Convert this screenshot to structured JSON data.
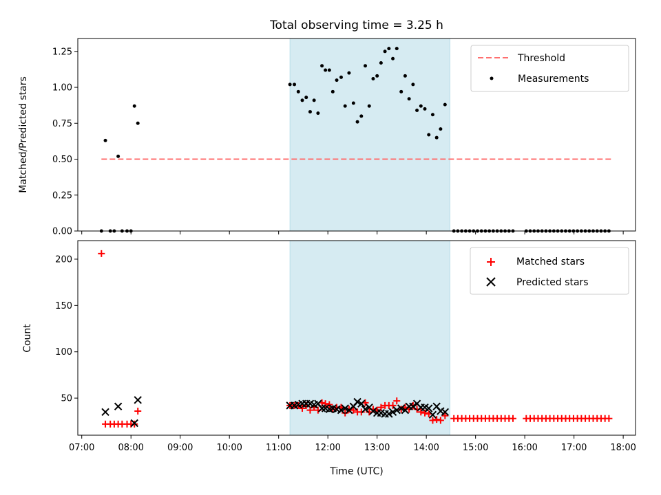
{
  "chart_data": [
    {
      "type": "scatter",
      "title": "Total observing time = 3.25 h",
      "ylabel": "Matched/Predicted stars",
      "xlabel": "",
      "xlim": [
        6.92,
        18.25
      ],
      "ylim": [
        0,
        1.34
      ],
      "yticks": [
        0,
        0.25,
        0.5,
        0.75,
        1.0,
        1.25
      ],
      "ytick_labels": [
        "0.00",
        "0.25",
        "0.50",
        "0.75",
        "1.00",
        "1.25"
      ],
      "xticks": [
        7,
        8,
        9,
        10,
        11,
        12,
        13,
        14,
        15,
        16,
        17,
        18
      ],
      "show_xtick_labels": false,
      "shaded_span": {
        "x0": 11.23,
        "x1": 14.48,
        "color": "#add8e6"
      },
      "threshold": {
        "name": "Threshold",
        "y": 0.5,
        "x0": 7.4,
        "x1": 17.75,
        "color": "#ff6f6f"
      },
      "legend": {
        "placement": "upper right",
        "entries": [
          "Threshold",
          "Measurements"
        ]
      },
      "series": [
        {
          "name": "Measurements",
          "color": "#000000",
          "marker": "dot",
          "points": [
            [
              7.4,
              0
            ],
            [
              7.48,
              0.63
            ],
            [
              7.58,
              0
            ],
            [
              7.66,
              0
            ],
            [
              7.74,
              0.52
            ],
            [
              7.82,
              0
            ],
            [
              7.92,
              0
            ],
            [
              8.0,
              0
            ],
            [
              8.07,
              0.87
            ],
            [
              8.14,
              0.75
            ],
            [
              11.23,
              1.02
            ],
            [
              11.32,
              1.02
            ],
            [
              11.4,
              0.97
            ],
            [
              11.48,
              0.91
            ],
            [
              11.56,
              0.93
            ],
            [
              11.64,
              0.83
            ],
            [
              11.72,
              0.91
            ],
            [
              11.8,
              0.82
            ],
            [
              11.88,
              1.15
            ],
            [
              11.95,
              1.12
            ],
            [
              12.03,
              1.12
            ],
            [
              12.1,
              0.97
            ],
            [
              12.18,
              1.05
            ],
            [
              12.27,
              1.07
            ],
            [
              12.35,
              0.87
            ],
            [
              12.43,
              1.1
            ],
            [
              12.52,
              0.89
            ],
            [
              12.6,
              0.76
            ],
            [
              12.68,
              0.8
            ],
            [
              12.76,
              1.15
            ],
            [
              12.84,
              0.87
            ],
            [
              12.92,
              1.06
            ],
            [
              13.0,
              1.08
            ],
            [
              13.08,
              1.17
            ],
            [
              13.16,
              1.25
            ],
            [
              13.24,
              1.27
            ],
            [
              13.32,
              1.2
            ],
            [
              13.4,
              1.27
            ],
            [
              13.49,
              0.97
            ],
            [
              13.57,
              1.08
            ],
            [
              13.65,
              0.92
            ],
            [
              13.73,
              1.02
            ],
            [
              13.81,
              0.84
            ],
            [
              13.89,
              0.87
            ],
            [
              13.97,
              0.85
            ],
            [
              14.05,
              0.67
            ],
            [
              14.13,
              0.81
            ],
            [
              14.21,
              0.65
            ],
            [
              14.29,
              0.71
            ],
            [
              14.38,
              0.88
            ],
            [
              14.56,
              0
            ],
            [
              14.64,
              0
            ],
            [
              14.72,
              0
            ],
            [
              14.8,
              0
            ],
            [
              14.88,
              0
            ],
            [
              14.96,
              0
            ],
            [
              15.04,
              0
            ],
            [
              15.12,
              0
            ],
            [
              15.2,
              0
            ],
            [
              15.28,
              0
            ],
            [
              15.36,
              0
            ],
            [
              15.44,
              0
            ],
            [
              15.52,
              0
            ],
            [
              15.6,
              0
            ],
            [
              15.68,
              0
            ],
            [
              15.76,
              0
            ],
            [
              16.03,
              0
            ],
            [
              16.11,
              0
            ],
            [
              16.19,
              0
            ],
            [
              16.27,
              0
            ],
            [
              16.35,
              0
            ],
            [
              16.43,
              0
            ],
            [
              16.51,
              0
            ],
            [
              16.59,
              0
            ],
            [
              16.67,
              0
            ],
            [
              16.75,
              0
            ],
            [
              16.83,
              0
            ],
            [
              16.91,
              0
            ],
            [
              16.99,
              0
            ],
            [
              17.07,
              0
            ],
            [
              17.15,
              0
            ],
            [
              17.23,
              0
            ],
            [
              17.31,
              0
            ],
            [
              17.39,
              0
            ],
            [
              17.47,
              0
            ],
            [
              17.55,
              0
            ],
            [
              17.63,
              0
            ],
            [
              17.71,
              0
            ]
          ]
        }
      ]
    },
    {
      "type": "scatter",
      "title": "",
      "ylabel": "Count",
      "xlabel": "Time (UTC)",
      "xlim": [
        6.92,
        18.25
      ],
      "ylim": [
        10,
        220
      ],
      "yticks": [
        50,
        100,
        150,
        200
      ],
      "ytick_labels": [
        "50",
        "100",
        "150",
        "200"
      ],
      "xticks": [
        7,
        8,
        9,
        10,
        11,
        12,
        13,
        14,
        15,
        16,
        17,
        18
      ],
      "xtick_labels": [
        "07:00",
        "08:00",
        "09:00",
        "10:00",
        "11:00",
        "12:00",
        "13:00",
        "14:00",
        "15:00",
        "16:00",
        "17:00",
        "18:00"
      ],
      "shaded_span": {
        "x0": 11.23,
        "x1": 14.48,
        "color": "#add8e6"
      },
      "legend": {
        "placement": "upper right",
        "entries": [
          "Matched stars",
          "Predicted stars"
        ]
      },
      "series": [
        {
          "name": "Matched stars",
          "color": "#ff0000",
          "marker": "plus",
          "points": [
            [
              7.4,
              206
            ],
            [
              7.48,
              22
            ],
            [
              7.58,
              22
            ],
            [
              7.66,
              22
            ],
            [
              7.74,
              22
            ],
            [
              7.82,
              22
            ],
            [
              7.92,
              22
            ],
            [
              8.0,
              22
            ],
            [
              8.07,
              22
            ],
            [
              8.14,
              36
            ],
            [
              11.23,
              42
            ],
            [
              11.32,
              42
            ],
            [
              11.4,
              42
            ],
            [
              11.48,
              39
            ],
            [
              11.56,
              42
            ],
            [
              11.64,
              37
            ],
            [
              11.72,
              40
            ],
            [
              11.8,
              37
            ],
            [
              11.88,
              45
            ],
            [
              11.95,
              44
            ],
            [
              12.03,
              43
            ],
            [
              12.1,
              38
            ],
            [
              12.18,
              40
            ],
            [
              12.27,
              40
            ],
            [
              12.35,
              34
            ],
            [
              12.43,
              38
            ],
            [
              12.52,
              37
            ],
            [
              12.6,
              35
            ],
            [
              12.68,
              35
            ],
            [
              12.76,
              45
            ],
            [
              12.84,
              35
            ],
            [
              12.92,
              38
            ],
            [
              13.0,
              37
            ],
            [
              13.08,
              40
            ],
            [
              13.16,
              42
            ],
            [
              13.24,
              42
            ],
            [
              13.32,
              42
            ],
            [
              13.4,
              47
            ],
            [
              13.49,
              38
            ],
            [
              13.57,
              40
            ],
            [
              13.65,
              38
            ],
            [
              13.73,
              42
            ],
            [
              13.81,
              38
            ],
            [
              13.89,
              35
            ],
            [
              13.97,
              34
            ],
            [
              14.05,
              33
            ],
            [
              14.13,
              26
            ],
            [
              14.21,
              27
            ],
            [
              14.29,
              26
            ],
            [
              14.38,
              31
            ],
            [
              14.56,
              28
            ],
            [
              14.64,
              28
            ],
            [
              14.72,
              28
            ],
            [
              14.8,
              28
            ],
            [
              14.88,
              28
            ],
            [
              14.96,
              28
            ],
            [
              15.04,
              28
            ],
            [
              15.12,
              28
            ],
            [
              15.2,
              28
            ],
            [
              15.28,
              28
            ],
            [
              15.36,
              28
            ],
            [
              15.44,
              28
            ],
            [
              15.52,
              28
            ],
            [
              15.6,
              28
            ],
            [
              15.68,
              28
            ],
            [
              15.76,
              28
            ],
            [
              16.03,
              28
            ],
            [
              16.11,
              28
            ],
            [
              16.19,
              28
            ],
            [
              16.27,
              28
            ],
            [
              16.35,
              28
            ],
            [
              16.43,
              28
            ],
            [
              16.51,
              28
            ],
            [
              16.59,
              28
            ],
            [
              16.67,
              28
            ],
            [
              16.75,
              28
            ],
            [
              16.83,
              28
            ],
            [
              16.91,
              28
            ],
            [
              16.99,
              28
            ],
            [
              17.07,
              28
            ],
            [
              17.15,
              28
            ],
            [
              17.23,
              28
            ],
            [
              17.31,
              28
            ],
            [
              17.39,
              28
            ],
            [
              17.47,
              28
            ],
            [
              17.55,
              28
            ],
            [
              17.63,
              28
            ],
            [
              17.71,
              28
            ]
          ]
        },
        {
          "name": "Predicted stars",
          "color": "#000000",
          "marker": "x",
          "points": [
            [
              7.48,
              35
            ],
            [
              7.74,
              41
            ],
            [
              8.07,
              23
            ],
            [
              8.14,
              48
            ],
            [
              11.23,
              42
            ],
            [
              11.32,
              42
            ],
            [
              11.4,
              43
            ],
            [
              11.48,
              44
            ],
            [
              11.56,
              44
            ],
            [
              11.64,
              44
            ],
            [
              11.72,
              43
            ],
            [
              11.8,
              44
            ],
            [
              11.88,
              39
            ],
            [
              11.95,
              39
            ],
            [
              12.03,
              38
            ],
            [
              12.1,
              39
            ],
            [
              12.18,
              38
            ],
            [
              12.27,
              37
            ],
            [
              12.35,
              39
            ],
            [
              12.43,
              37
            ],
            [
              12.52,
              41
            ],
            [
              12.6,
              46
            ],
            [
              12.68,
              44
            ],
            [
              12.76,
              38
            ],
            [
              12.84,
              40
            ],
            [
              12.92,
              36
            ],
            [
              13.0,
              34
            ],
            [
              13.08,
              34
            ],
            [
              13.16,
              33
            ],
            [
              13.24,
              33
            ],
            [
              13.32,
              35
            ],
            [
              13.4,
              37
            ],
            [
              13.49,
              39
            ],
            [
              13.57,
              37
            ],
            [
              13.65,
              41
            ],
            [
              13.73,
              41
            ],
            [
              13.81,
              44
            ],
            [
              13.89,
              40
            ],
            [
              13.97,
              40
            ],
            [
              14.05,
              39
            ],
            [
              14.13,
              32
            ],
            [
              14.21,
              41
            ],
            [
              14.29,
              36
            ],
            [
              14.38,
              35
            ]
          ]
        }
      ]
    }
  ]
}
